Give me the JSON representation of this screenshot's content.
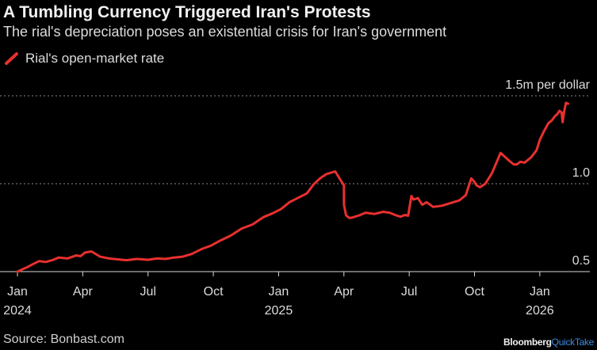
{
  "chart_data": {
    "type": "line",
    "title": "A Tumbling Currency Triggered Iran's Protests",
    "subtitle": "The rial's depreciation poses an existential crisis for Iran's government",
    "legend": [
      {
        "name": "Rial's open-market rate",
        "color": "#e8302f"
      }
    ],
    "series": [
      {
        "name": "Rial's open-market rate",
        "color": "#e8302f",
        "x": [
          0,
          0.1,
          0.25,
          0.45,
          0.6,
          0.8,
          1.0,
          1.3,
          1.6,
          1.9,
          2.3,
          2.7,
          2.9,
          3.1,
          3.4,
          3.8,
          4.2,
          4.6,
          5.0,
          5.5,
          6.0,
          6.4,
          6.8,
          7.2,
          7.6,
          8.0,
          8.5,
          8.9,
          9.3,
          9.8,
          10.3,
          10.8,
          11.3,
          11.7,
          12.1,
          12.5,
          12.9,
          13.3,
          13.6,
          13.9,
          14.2,
          14.6,
          15.0,
          15.0,
          15.1,
          15.25,
          15.4,
          15.7,
          16.0,
          16.4,
          16.8,
          17.1,
          17.4,
          17.6,
          17.8,
          17.95,
          18.1,
          18.2,
          18.4,
          18.6,
          18.8,
          19.1,
          19.5,
          19.9,
          20.3,
          20.6,
          20.85,
          21.0,
          21.1,
          21.25,
          21.5,
          21.8,
          22.2,
          22.6,
          22.8,
          22.95,
          23.1,
          23.3,
          23.6,
          23.85,
          24.0,
          24.2,
          24.4,
          24.55,
          24.7,
          24.8,
          24.9,
          25.0,
          25.05,
          25.1,
          25.2,
          25.3
        ],
        "values": [
          0.5,
          0.505,
          0.515,
          0.525,
          0.535,
          0.548,
          0.56,
          0.555,
          0.565,
          0.58,
          0.575,
          0.592,
          0.588,
          0.608,
          0.615,
          0.585,
          0.575,
          0.57,
          0.565,
          0.572,
          0.567,
          0.575,
          0.572,
          0.58,
          0.585,
          0.6,
          0.63,
          0.648,
          0.675,
          0.705,
          0.745,
          0.768,
          0.81,
          0.83,
          0.855,
          0.895,
          0.92,
          0.945,
          0.995,
          1.03,
          1.055,
          1.07,
          0.99,
          0.88,
          0.82,
          0.805,
          0.808,
          0.82,
          0.835,
          0.828,
          0.84,
          0.835,
          0.82,
          0.812,
          0.822,
          0.818,
          0.93,
          0.91,
          0.918,
          0.88,
          0.895,
          0.868,
          0.875,
          0.89,
          0.905,
          0.935,
          1.03,
          1.01,
          0.99,
          0.98,
          1.0,
          1.06,
          1.175,
          1.13,
          1.11,
          1.11,
          1.125,
          1.12,
          1.15,
          1.19,
          1.25,
          1.3,
          1.345,
          1.36,
          1.385,
          1.395,
          1.415,
          1.405,
          1.35,
          1.4,
          1.46,
          1.455
        ]
      }
    ],
    "x_ticks": [
      {
        "pos": 0,
        "label": "Jan",
        "year": "2024"
      },
      {
        "pos": 3,
        "label": "Apr",
        "year": ""
      },
      {
        "pos": 6,
        "label": "Jul",
        "year": ""
      },
      {
        "pos": 9,
        "label": "Oct",
        "year": ""
      },
      {
        "pos": 12,
        "label": "Jan",
        "year": "2025"
      },
      {
        "pos": 15,
        "label": "Apr",
        "year": ""
      },
      {
        "pos": 18,
        "label": "Jul",
        "year": ""
      },
      {
        "pos": 21,
        "label": "Oct",
        "year": ""
      },
      {
        "pos": 24,
        "label": "Jan",
        "year": "2026"
      }
    ],
    "y_ticks": [
      {
        "value": 1.5,
        "label": "1.5m per dollar"
      },
      {
        "value": 1.0,
        "label": "1.0"
      },
      {
        "value": 0.5,
        "label": "0.5"
      }
    ],
    "xlim": [
      0,
      26.3
    ],
    "ylim": [
      0.5,
      1.5
    ],
    "grid": true,
    "legend_position": "top-left"
  },
  "footer": {
    "source": "Source: Bonbast.com",
    "brand_1": "Bloomberg",
    "brand_2": "QuickTake"
  }
}
